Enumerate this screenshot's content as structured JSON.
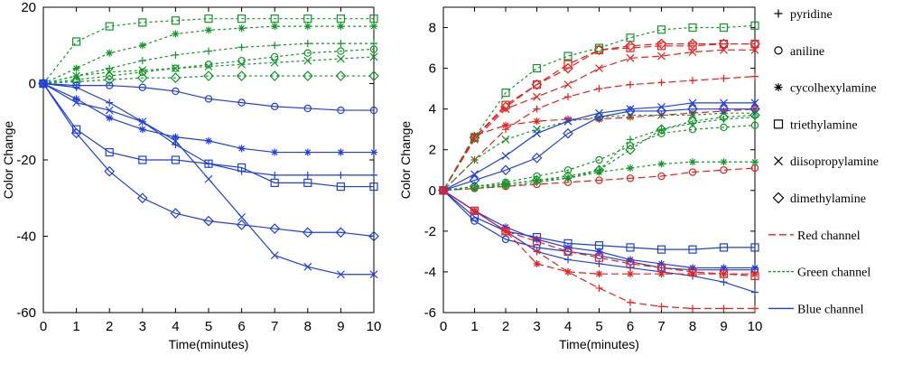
{
  "chart_data": [
    {
      "type": "line",
      "panel": "left",
      "title": "",
      "xlabel": "Time(minutes)",
      "ylabel": "Color Change",
      "xlim": [
        0,
        10
      ],
      "ylim": [
        -60,
        20
      ],
      "xticks": [
        "0",
        "1",
        "2",
        "3",
        "4",
        "5",
        "6",
        "7",
        "8",
        "9",
        "10"
      ],
      "yticks": [
        "20",
        "0",
        "-20",
        "-40",
        "-60"
      ],
      "x": [
        0,
        1,
        2,
        3,
        4,
        5,
        6,
        7,
        8,
        9,
        10
      ],
      "series": [
        {
          "name": "pyridine - Green channel",
          "amine": "pyridine",
          "channel": "green",
          "values": [
            0,
            2,
            4,
            6,
            7.5,
            8.5,
            9.5,
            10,
            10.5,
            10.5,
            10.5
          ]
        },
        {
          "name": "aniline - Green channel",
          "amine": "aniline",
          "channel": "green",
          "values": [
            0,
            1,
            2,
            3,
            4,
            5,
            6,
            7,
            8,
            8.5,
            9
          ]
        },
        {
          "name": "cycolhexylamine - Green channel",
          "amine": "cycolhexylamine",
          "channel": "green",
          "values": [
            0,
            4,
            8,
            10,
            13,
            14,
            14.5,
            15,
            15,
            15,
            15
          ]
        },
        {
          "name": "triethylamine - Green channel",
          "amine": "triethylamine",
          "channel": "green",
          "values": [
            0,
            11,
            15,
            16,
            16.5,
            17,
            17,
            17,
            17,
            17,
            17
          ]
        },
        {
          "name": "diisopropylamine - Green channel",
          "amine": "diisopropylamine",
          "channel": "green",
          "values": [
            0,
            2,
            3,
            3.5,
            4,
            4.5,
            5,
            5.5,
            6,
            6.5,
            7
          ]
        },
        {
          "name": "dimethylamine - Green channel",
          "amine": "dimethylamine",
          "channel": "green",
          "values": [
            0,
            0.5,
            1,
            1.5,
            1.5,
            2,
            2,
            2,
            2,
            2,
            2
          ]
        },
        {
          "name": "pyridine - Blue channel",
          "amine": "pyridine",
          "channel": "blue",
          "values": [
            0,
            -1,
            -5,
            -10,
            -16,
            -21,
            -23,
            -24,
            -24,
            -24,
            -24
          ]
        },
        {
          "name": "aniline - Blue channel",
          "amine": "aniline",
          "channel": "blue",
          "values": [
            0,
            -0.5,
            -0.5,
            -1,
            -2,
            -4,
            -5,
            -6,
            -6.5,
            -7,
            -7
          ]
        },
        {
          "name": "cycolhexylamine - Blue channel",
          "amine": "cycolhexylamine",
          "channel": "blue",
          "values": [
            0,
            -4,
            -9,
            -12,
            -14,
            -15,
            -17,
            -18,
            -18,
            -18,
            -18
          ]
        },
        {
          "name": "triethylamine - Blue channel",
          "amine": "triethylamine",
          "channel": "blue",
          "values": [
            0,
            -12,
            -18,
            -20,
            -20,
            -21,
            -22,
            -26,
            -26,
            -27,
            -27
          ]
        },
        {
          "name": "diisopropylamine - Blue channel",
          "amine": "diisopropylamine",
          "channel": "blue",
          "values": [
            0,
            -5,
            -7,
            -10,
            -15,
            -25,
            -35,
            -45,
            -48,
            -50,
            -50
          ]
        },
        {
          "name": "dimethylamine - Blue channel",
          "amine": "dimethylamine",
          "channel": "blue",
          "values": [
            0,
            -13,
            -23,
            -30,
            -34,
            -36,
            -37,
            -38,
            -39,
            -39,
            -40
          ]
        }
      ]
    },
    {
      "type": "line",
      "panel": "right",
      "title": "",
      "xlabel": "Time(minutes)",
      "ylabel": "Color Change",
      "xlim": [
        0,
        10
      ],
      "ylim": [
        -6,
        9
      ],
      "xticks": [
        "0",
        "1",
        "2",
        "3",
        "4",
        "5",
        "6",
        "7",
        "8",
        "9",
        "10"
      ],
      "yticks": [
        "8",
        "6",
        "4",
        "2",
        "0",
        "-2",
        "-4",
        "-6"
      ],
      "x": [
        0,
        1,
        2,
        3,
        4,
        5,
        6,
        7,
        8,
        9,
        10
      ],
      "series": [
        {
          "name": "pyridine - Red channel",
          "amine": "pyridine",
          "channel": "red",
          "values": [
            0,
            1.5,
            3,
            4,
            4.6,
            5,
            5.2,
            5.3,
            5.4,
            5.5,
            5.6
          ]
        },
        {
          "name": "aniline - Red channel",
          "amine": "aniline",
          "channel": "red",
          "values": [
            0,
            0.1,
            0.2,
            0.3,
            0.4,
            0.5,
            0.6,
            0.7,
            0.9,
            1,
            1.1
          ]
        },
        {
          "name": "cycolhexylamine - Red channel",
          "amine": "cycolhexylamine",
          "channel": "red",
          "values": [
            0,
            2.7,
            3.2,
            3.4,
            3.5,
            3.5,
            3.6,
            3.7,
            3.8,
            3.9,
            4
          ]
        },
        {
          "name": "triethylamine - Red channel",
          "amine": "triethylamine",
          "channel": "red",
          "values": [
            0,
            2.6,
            4.2,
            5.2,
            6.2,
            6.9,
            7,
            7.1,
            7.1,
            7.2,
            7.2
          ]
        },
        {
          "name": "diisopropylamine - Red channel",
          "amine": "diisopropylamine",
          "channel": "red",
          "values": [
            0,
            2.5,
            4,
            4.6,
            5.2,
            6,
            6.5,
            6.6,
            6.8,
            6.9,
            6.9
          ]
        },
        {
          "name": "dimethylamine - Red channel",
          "amine": "dimethylamine",
          "channel": "red",
          "values": [
            0,
            2.6,
            4.1,
            5.2,
            6,
            6.9,
            7.1,
            7.2,
            7.2,
            7.2,
            7.2
          ]
        },
        {
          "name": "pyridine - Green channel",
          "amine": "pyridine",
          "channel": "green",
          "values": [
            0,
            0.1,
            0.2,
            0.4,
            0.6,
            1,
            2.5,
            3,
            3.3,
            3.5,
            3.6
          ]
        },
        {
          "name": "aniline - Green channel",
          "amine": "aniline",
          "channel": "green",
          "values": [
            0,
            0.2,
            0.4,
            0.7,
            1,
            1.5,
            2.2,
            2.8,
            3,
            3.1,
            3.2
          ]
        },
        {
          "name": "cycolhexylamine - Green channel",
          "amine": "cycolhexylamine",
          "channel": "green",
          "values": [
            0,
            0.1,
            0.3,
            0.5,
            0.6,
            0.9,
            1.1,
            1.3,
            1.4,
            1.4,
            1.4
          ]
        },
        {
          "name": "triethylamine - Green channel",
          "amine": "triethylamine",
          "channel": "green",
          "values": [
            0,
            2.6,
            4.8,
            6,
            6.6,
            7,
            7.5,
            7.9,
            8,
            8,
            8.1
          ]
        },
        {
          "name": "diisopropylamine - Green channel",
          "amine": "diisopropylamine",
          "channel": "green",
          "values": [
            0,
            1.5,
            2.5,
            3,
            3.4,
            3.6,
            3.7,
            3.7,
            3.7,
            3.8,
            3.8
          ]
        },
        {
          "name": "dimethylamine - Green channel",
          "amine": "dimethylamine",
          "channel": "green",
          "values": [
            0,
            0.2,
            0.3,
            0.5,
            0.7,
            1,
            2,
            3,
            3.4,
            3.6,
            3.7
          ]
        },
        {
          "name": "pyridine - Blue channel",
          "amine": "pyridine",
          "channel": "blue",
          "values": [
            0,
            -1,
            -2,
            -3,
            -3.4,
            -3.6,
            -3.8,
            -4,
            -4.2,
            -4.5,
            -5
          ]
        },
        {
          "name": "aniline - Blue channel",
          "amine": "aniline",
          "channel": "blue",
          "values": [
            0,
            -1.5,
            -2.4,
            -2.8,
            -3,
            -3.2,
            -3.5,
            -3.8,
            -3.9,
            -3.9,
            -3.9
          ]
        },
        {
          "name": "cycolhexylamine - Blue channel",
          "amine": "cycolhexylamine",
          "channel": "blue",
          "values": [
            0,
            -1,
            -1.8,
            -2.4,
            -2.8,
            -3,
            -3.4,
            -3.6,
            -3.8,
            -3.8,
            -3.8
          ]
        },
        {
          "name": "triethylamine - Blue channel",
          "amine": "triethylamine",
          "channel": "blue",
          "values": [
            0,
            -1.3,
            -2,
            -2.3,
            -2.6,
            -2.7,
            -2.8,
            -2.9,
            -2.9,
            -2.8,
            -2.8
          ]
        },
        {
          "name": "diisopropylamine - Blue channel",
          "amine": "diisopropylamine",
          "channel": "blue",
          "values": [
            0,
            0.8,
            1.7,
            2.8,
            3.4,
            3.8,
            4,
            4.1,
            4.3,
            4.3,
            4.3
          ]
        },
        {
          "name": "dimethylamine - Blue channel",
          "amine": "dimethylamine",
          "channel": "blue",
          "values": [
            0,
            0.5,
            1,
            1.6,
            2.8,
            3.6,
            3.9,
            3.9,
            4,
            4,
            4
          ]
        },
        {
          "name": "triethylamine - Red channel (lower)",
          "amine": "triethylamine",
          "channel": "red",
          "values": [
            0,
            -1,
            -2,
            -2.5,
            -3,
            -3.3,
            -3.6,
            -3.8,
            -4,
            -4.1,
            -4.2
          ]
        },
        {
          "name": "pyridine - Red channel (lower)",
          "amine": "pyridine",
          "channel": "red",
          "values": [
            0,
            -1,
            -2,
            -3,
            -4,
            -4.8,
            -5.5,
            -5.7,
            -5.8,
            -5.8,
            -5.8
          ]
        },
        {
          "name": "cycolhexylamine - Red channel (lower)",
          "amine": "cycolhexylamine",
          "channel": "red",
          "values": [
            0,
            -1,
            -2,
            -3.6,
            -4,
            -4.1,
            -4.1,
            -4.1,
            -4.1,
            -4.1,
            -4.1
          ]
        }
      ]
    }
  ],
  "legend": {
    "position": "right",
    "entries": [
      {
        "label": "pyridine",
        "kind": "marker",
        "marker": "plus"
      },
      {
        "label": "aniline",
        "kind": "marker",
        "marker": "circle"
      },
      {
        "label": "cycolhexylamine",
        "kind": "marker",
        "marker": "asterisk"
      },
      {
        "label": "triethylamine",
        "kind": "marker",
        "marker": "square"
      },
      {
        "label": "diisopropylamine",
        "kind": "marker",
        "marker": "cross"
      },
      {
        "label": "dimethylamine",
        "kind": "marker",
        "marker": "diamond"
      },
      {
        "label": "Red channel",
        "kind": "line",
        "color": "#e8201f",
        "dash": "dashed"
      },
      {
        "label": "Green channel",
        "kind": "line",
        "color": "#13952a",
        "dash": "dotted"
      },
      {
        "label": "Blue channel",
        "kind": "line",
        "color": "#1f3fe0",
        "dash": "solid"
      }
    ]
  },
  "colors": {
    "red": "#e8201f",
    "green": "#13952a",
    "blue": "#1f3fe0",
    "axis": "#000000"
  },
  "markers": {
    "pyridine": "plus",
    "aniline": "circle",
    "cycolhexylamine": "asterisk",
    "triethylamine": "square",
    "diisopropylamine": "cross",
    "dimethylamine": "diamond"
  }
}
